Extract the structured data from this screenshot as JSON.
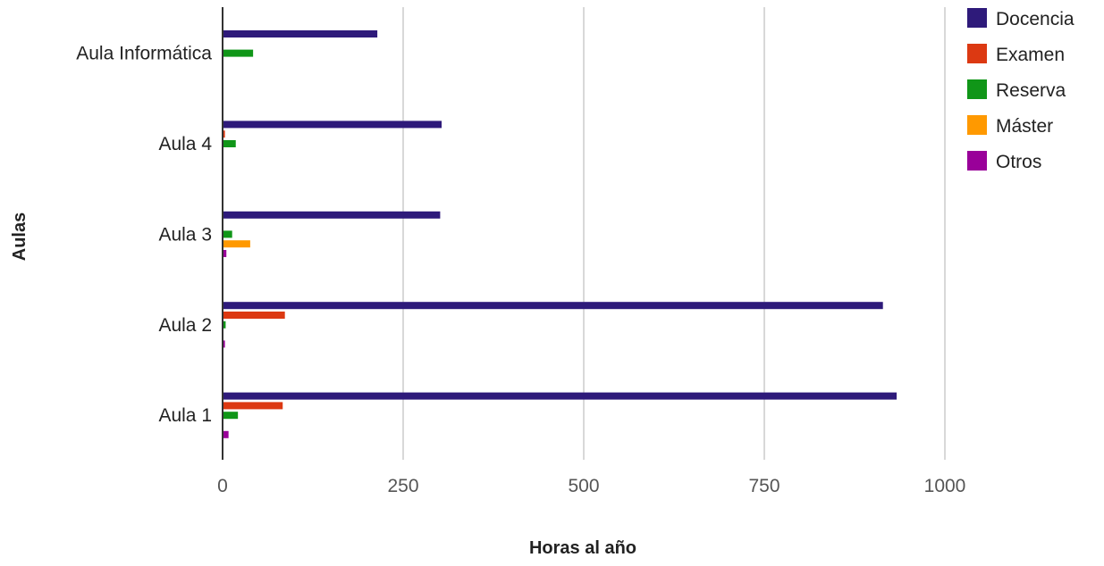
{
  "chart_data": {
    "type": "bar",
    "orientation": "horizontal",
    "title": "",
    "xlabel": "Horas al año",
    "ylabel": "Aulas",
    "xlim": [
      0,
      1000
    ],
    "xticks": [
      "0",
      "250",
      "500",
      "750",
      "1000"
    ],
    "grid": true,
    "legend_position": "right",
    "categories": [
      "Aula Informática",
      "Aula 4",
      "Aula 3",
      "Aula 2",
      "Aula 1"
    ],
    "series": [
      {
        "name": "Docencia",
        "color": "#2e1a7a",
        "values": [
          213,
          302,
          300,
          913,
          932
        ]
      },
      {
        "name": "Examen",
        "color": "#dc3912",
        "values": [
          0,
          2,
          0,
          85,
          82
        ]
      },
      {
        "name": "Reserva",
        "color": "#109618",
        "values": [
          41,
          17,
          12,
          3,
          20
        ]
      },
      {
        "name": "Máster",
        "color": "#ff9900",
        "values": [
          0,
          0,
          37,
          0,
          0
        ]
      },
      {
        "name": "Otros",
        "color": "#990099",
        "values": [
          0,
          0,
          4,
          2,
          7
        ]
      }
    ]
  }
}
